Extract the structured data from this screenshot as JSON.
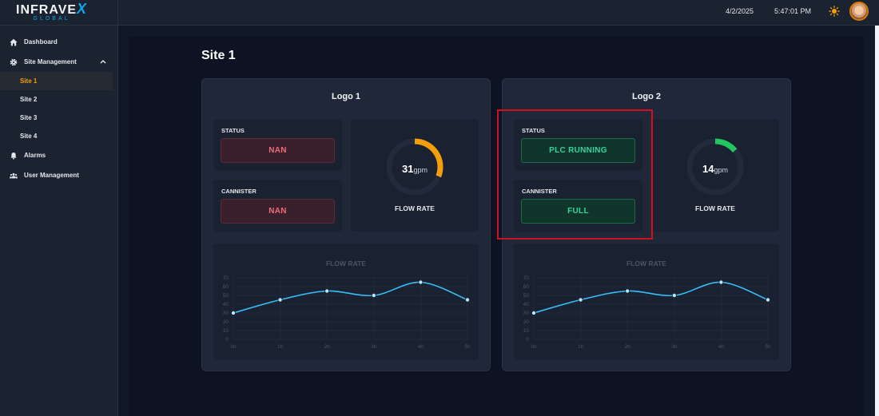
{
  "brand": {
    "name": "INFRAVE",
    "x": "X",
    "sub": "GLOBAL"
  },
  "nav": {
    "dashboard": "Dashboard",
    "site_management": "Site Management",
    "sites": [
      "Site 1",
      "Site 2",
      "Site 3",
      "Site 4"
    ],
    "alarms": "Alarms",
    "user_management": "User Management"
  },
  "topbar": {
    "date": "4/2/2025",
    "time": "5:47:01 PM"
  },
  "page": {
    "title": "Site 1"
  },
  "panels": [
    {
      "title": "Logo 1",
      "status_label": "STATUS",
      "status_value": "NAN",
      "cannister_label": "CANNISTER",
      "cannister_value": "NAN",
      "flow_value": "31",
      "flow_unit": "gpm",
      "flow_label": "FLOW RATE",
      "gauge_fraction": 0.31,
      "gauge_color": "#f59e0b",
      "chart_title": "FLOW RATE"
    },
    {
      "title": "Logo 2",
      "status_label": "STATUS",
      "status_value": "PLC RUNNING",
      "cannister_label": "CANNISTER",
      "cannister_value": "FULL",
      "flow_value": "14",
      "flow_unit": "gpm",
      "flow_label": "FLOW RATE",
      "gauge_fraction": 0.14,
      "gauge_color": "#22c55e",
      "chart_title": "FLOW RATE"
    }
  ],
  "chart_data": [
    {
      "type": "line",
      "title": "FLOW RATE",
      "categories": [
        "0h",
        "1h",
        "2h",
        "3h",
        "4h",
        "5h"
      ],
      "values": [
        30,
        45,
        55,
        50,
        65,
        45
      ],
      "ylim": [
        0,
        70
      ],
      "yticks": [
        "0",
        "10",
        "20",
        "30",
        "40",
        "50",
        "60",
        "70"
      ],
      "grid": true,
      "color": "#38bdf8"
    },
    {
      "type": "line",
      "title": "FLOW RATE",
      "categories": [
        "0h",
        "1h",
        "2h",
        "3h",
        "4h",
        "5h"
      ],
      "values": [
        30,
        45,
        55,
        50,
        65,
        45
      ],
      "ylim": [
        0,
        70
      ],
      "yticks": [
        "0",
        "10",
        "20",
        "30",
        "40",
        "50",
        "60",
        "70"
      ],
      "grid": true,
      "color": "#38bdf8"
    }
  ]
}
